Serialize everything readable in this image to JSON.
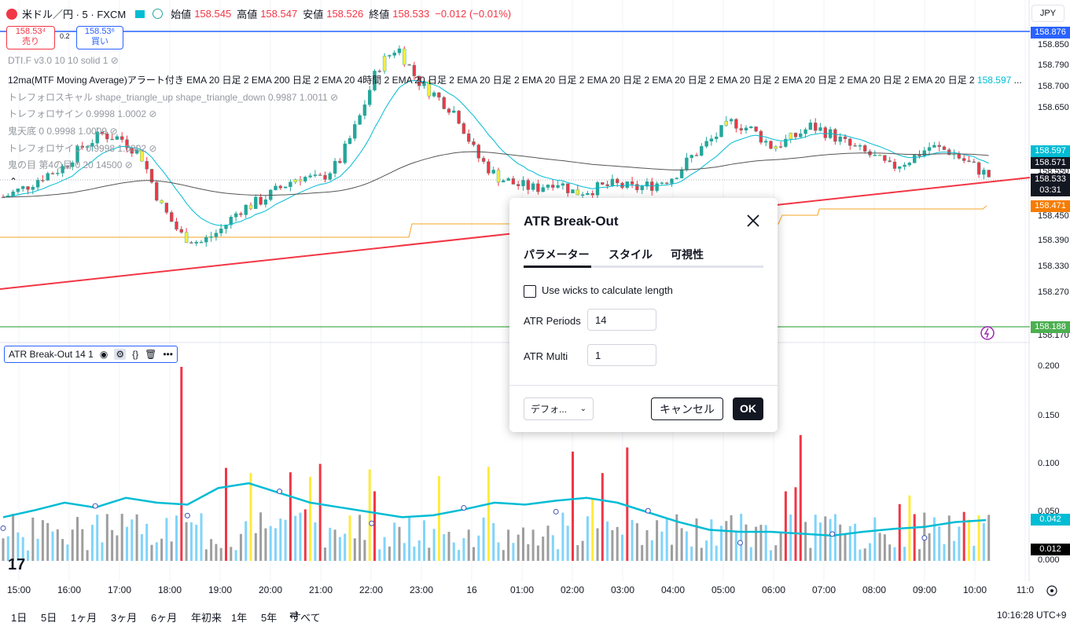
{
  "header": {
    "symbol": "米ドル／円 · 5 · FXCM",
    "open_label": "始値",
    "open_value": "158.545",
    "high_label": "高値",
    "high_value": "158.547",
    "low_label": "安値",
    "low_value": "158.526",
    "close_label": "終値",
    "close_value": "158.533",
    "change": "−0.012 (−0.01%)"
  },
  "currency_button": "JPY",
  "trade": {
    "sell_price": "158.53⁴",
    "sell_label": "売り",
    "buy_price": "158.53⁶",
    "buy_label": "買い",
    "spread": "0.2"
  },
  "legends": [
    {
      "text": "DTI.F v3.0 10 10 solid 1"
    },
    {
      "text": "12ma(MTF Moving Average)アラート付き EMA 20 日足 2 EMA 200 日足 2 EMA 20 4時間 2 EMA 20 日足 2 EMA 20 日足 2 EMA 20 日足 2 EMA 20 日足 2 EMA 20 日足 2 EMA 20 日足 2 EMA 20 日足 2 EMA 20 日足 2 EMA 20 日足 2",
      "value": "158.597",
      "ellipsis": "..."
    },
    {
      "text": "トレフォロスキャル shape_triangle_up shape_triangle_down 0.9987 1.0011"
    },
    {
      "text": "トレフォロサイン 0.9998 1.0002"
    },
    {
      "text": "鬼天底 0 0.9998 1.0009"
    },
    {
      "text": "トレフォロサイン 0.9998 1.0002"
    },
    {
      "text": "鬼の目 第4の目 0 20 14500"
    }
  ],
  "price_axis": {
    "labels": [
      "158.850",
      "158.790",
      "158.700",
      "158.650",
      "158.550",
      "158.450",
      "158.390",
      "158.330",
      "158.270",
      "158.170"
    ],
    "tags": [
      {
        "value": "158.876",
        "color": "#2962ff"
      },
      {
        "value": "158.597",
        "color": "#00bcd4"
      },
      {
        "value": "158.571",
        "color": "#131722"
      },
      {
        "value": "158.533",
        "color": "#131722"
      },
      {
        "value": "03:31",
        "color": "#131722"
      },
      {
        "value": "158.471",
        "color": "#f57c00"
      },
      {
        "value": "158.188",
        "color": "#4caf50"
      }
    ]
  },
  "indicator_axis": {
    "labels": [
      "0.200",
      "0.150",
      "0.100",
      "0.050",
      "0.000"
    ],
    "tags": [
      {
        "value": "0.042",
        "color": "#00bcd4"
      },
      {
        "value": "0.012",
        "color": "#000000"
      }
    ]
  },
  "indicator_legend": {
    "label": "ATR Break-Out 14 1"
  },
  "time_axis": [
    "15:00",
    "16:00",
    "17:00",
    "18:00",
    "19:00",
    "20:00",
    "21:00",
    "22:00",
    "23:00",
    "16",
    "01:00",
    "02:00",
    "03:00",
    "04:00",
    "05:00",
    "06:00",
    "07:00",
    "08:00",
    "09:00",
    "10:00",
    "11:0"
  ],
  "periods": [
    "1日",
    "5日",
    "1ヶ月",
    "3ヶ月",
    "6ヶ月",
    "年初来",
    "1年",
    "5年",
    "すべて"
  ],
  "clock": "10:16:28 UTC+9",
  "dialog": {
    "title": "ATR Break-Out",
    "tabs": [
      "パラメーター",
      "スタイル",
      "可視性"
    ],
    "checkbox_label": "Use wicks to calculate length",
    "atr_periods_label": "ATR Periods",
    "atr_periods_value": "14",
    "atr_multi_label": "ATR Multi",
    "atr_multi_value": "1",
    "defaults_label": "デフォ...",
    "cancel_label": "キャンセル",
    "ok_label": "OK"
  },
  "colors": {
    "up": "#26a69a",
    "down": "#f23645",
    "signal": "#ffeb3b",
    "atr_line": "#00bcd4",
    "ema_slow": "#555555",
    "trend": "#f23645"
  },
  "chart_data": {
    "type": "candlestick",
    "price_range": [
      158.17,
      158.876
    ],
    "close_series": [
      158.48,
      158.5,
      158.53,
      158.55,
      158.6,
      158.63,
      158.62,
      158.58,
      158.46,
      158.39,
      158.37,
      158.4,
      158.45,
      158.47,
      158.5,
      158.53,
      158.52,
      158.56,
      158.66,
      158.79,
      158.84,
      158.76,
      158.72,
      158.68,
      158.58,
      158.53,
      158.51,
      158.5,
      158.52,
      158.49,
      158.5,
      158.51,
      158.5,
      158.51,
      158.53,
      158.58,
      158.62,
      158.66,
      158.64,
      158.6,
      158.62,
      158.65,
      158.63,
      158.6,
      158.58,
      158.55,
      158.57,
      158.6,
      158.59,
      158.56,
      158.53
    ],
    "atr_range": [
      0,
      0.2
    ],
    "atr_line": [
      0.045,
      0.052,
      0.06,
      0.055,
      0.065,
      0.06,
      0.058,
      0.075,
      0.08,
      0.07,
      0.06,
      0.055,
      0.05,
      0.045,
      0.047,
      0.053,
      0.06,
      0.058,
      0.062,
      0.065,
      0.06,
      0.05,
      0.04,
      0.032,
      0.03,
      0.03,
      0.028,
      0.026,
      0.03,
      0.033,
      0.035,
      0.04,
      0.042
    ]
  }
}
